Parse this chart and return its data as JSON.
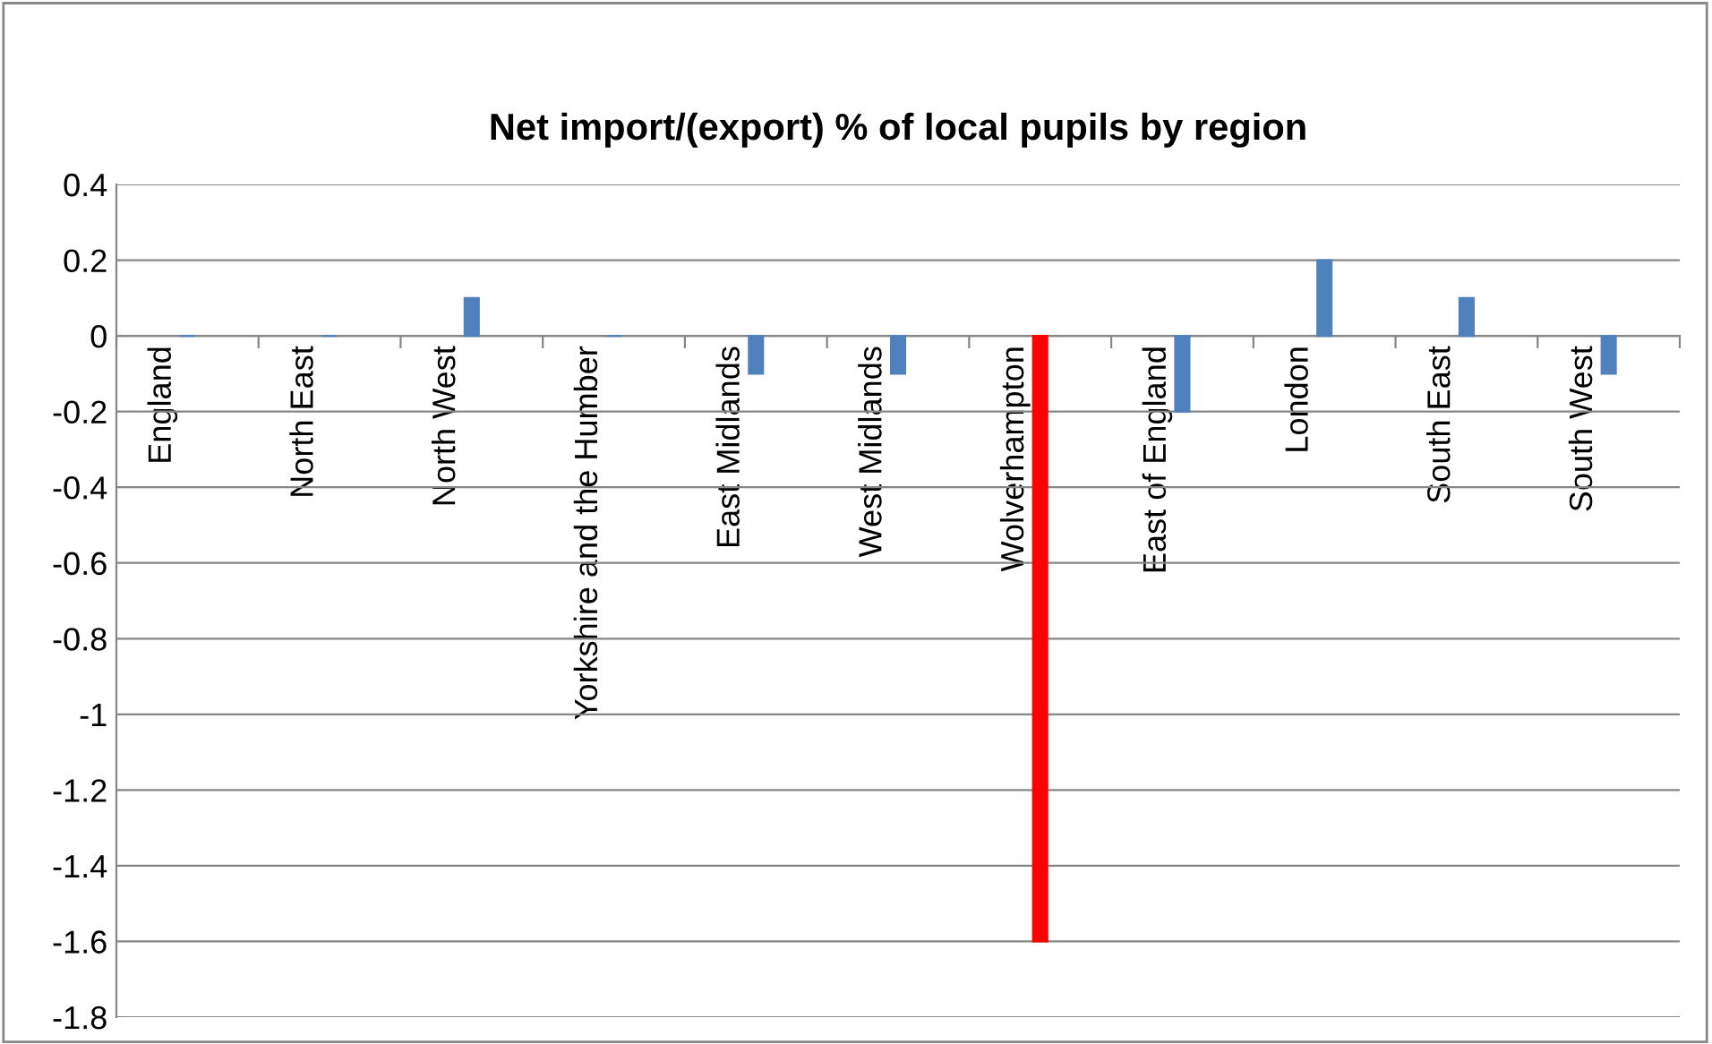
{
  "chart_data": {
    "type": "bar",
    "title": "Net import/(export) % of local pupils by region",
    "categories": [
      "England",
      "North East",
      "North West",
      "Yorkshire and the Humber",
      "East Midlands",
      "West Midlands",
      "Wolverhampton",
      "East of England",
      "London",
      "South East",
      "South West"
    ],
    "values": [
      0,
      0,
      0.1,
      0,
      -0.1,
      -0.1,
      -1.6,
      -0.2,
      0.2,
      0.1,
      -0.1
    ],
    "colors": [
      "#4f81bd",
      "#4f81bd",
      "#4f81bd",
      "#4f81bd",
      "#4f81bd",
      "#4f81bd",
      "#ff0000",
      "#4f81bd",
      "#4f81bd",
      "#4f81bd",
      "#4f81bd"
    ],
    "ylim": [
      -1.8,
      0.4
    ],
    "yticks": [
      0.4,
      0.2,
      0,
      -0.2,
      -0.4,
      -0.6,
      -0.8,
      -1,
      -1.2,
      -1.4,
      -1.6,
      -1.8
    ],
    "grid": "y",
    "legend": false
  }
}
